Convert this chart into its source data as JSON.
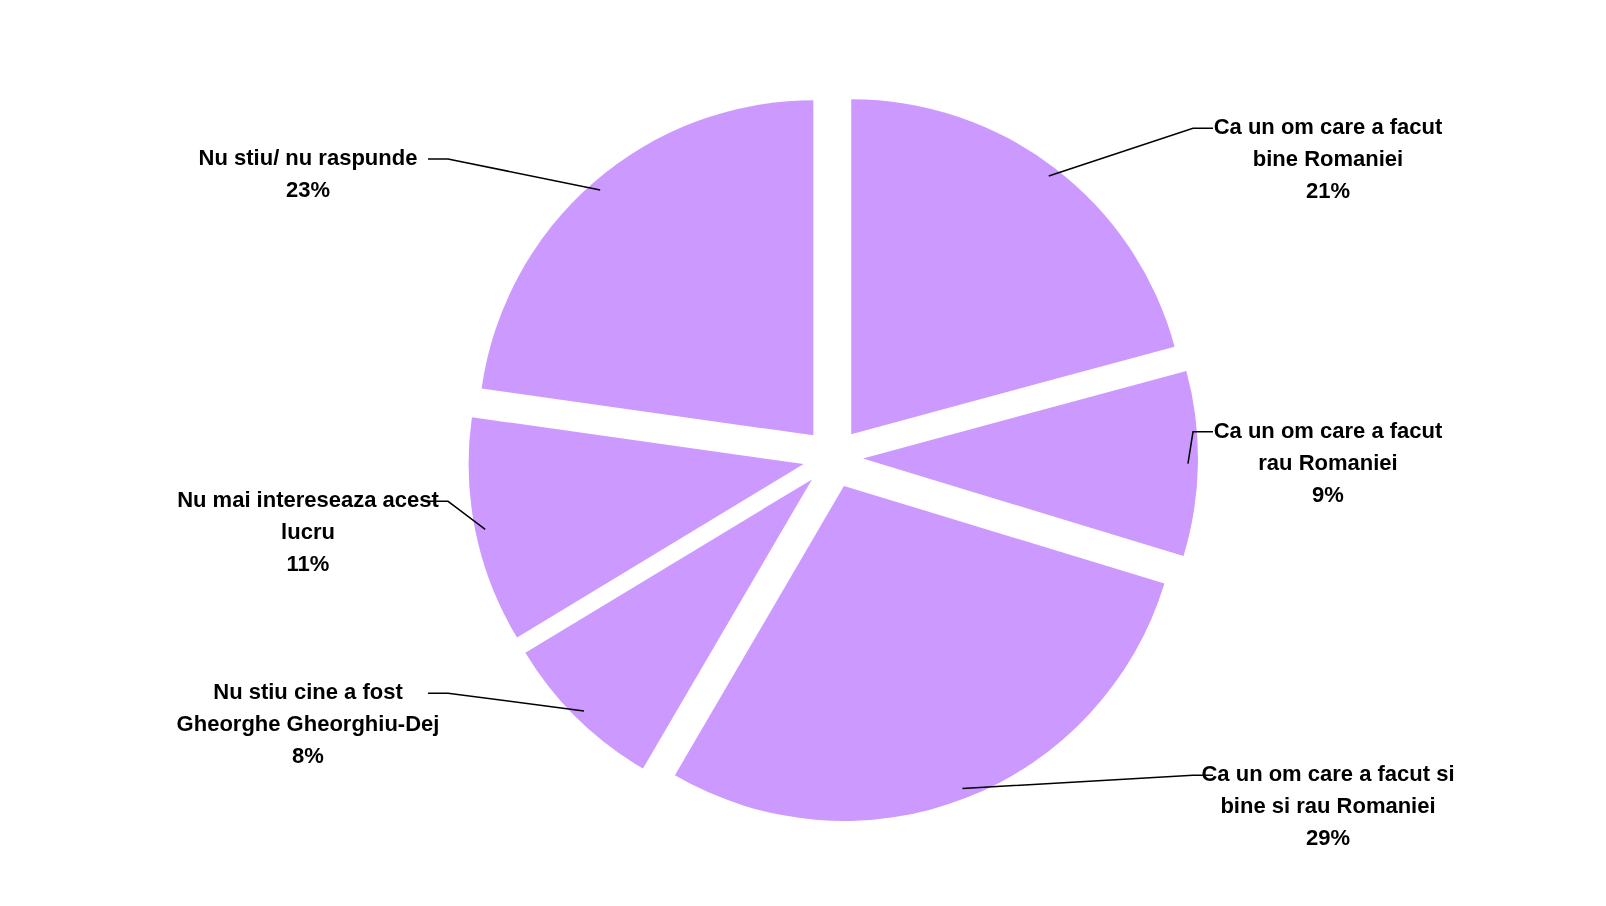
{
  "chart_data": {
    "type": "pie",
    "categories": [
      "Ca un om care a facut bine Romaniei",
      "Ca un om care a facut rau Romaniei",
      "Ca un om care a facut si bine si rau Romaniei",
      "Nu stiu cine a fost Gheorghe Gheorghiu-Dej",
      "Nu mai intereseaza acest lucru",
      "Nu stiu/ nu raspunde"
    ],
    "values": [
      21,
      9,
      29,
      8,
      11,
      23
    ],
    "value_labels": [
      "21%",
      "9%",
      "29%",
      "8%",
      "11%",
      "23%"
    ],
    "colors": [
      "#cc99ff",
      "#cc99ff",
      "#cc99ff",
      "#cc99ff",
      "#cc99ff",
      "#cc99ff"
    ],
    "legend": false
  }
}
